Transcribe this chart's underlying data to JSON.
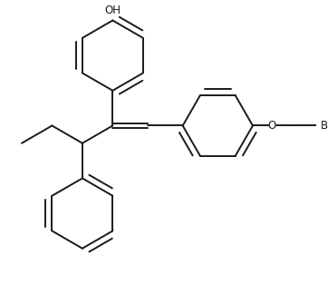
{
  "bg_color": "#ffffff",
  "line_color": "#1a1a1a",
  "line_width": 1.4,
  "fig_width": 3.62,
  "fig_height": 3.14,
  "dpi": 100,
  "OH_label": "OH",
  "O_label": "O",
  "Br_label": "Br"
}
